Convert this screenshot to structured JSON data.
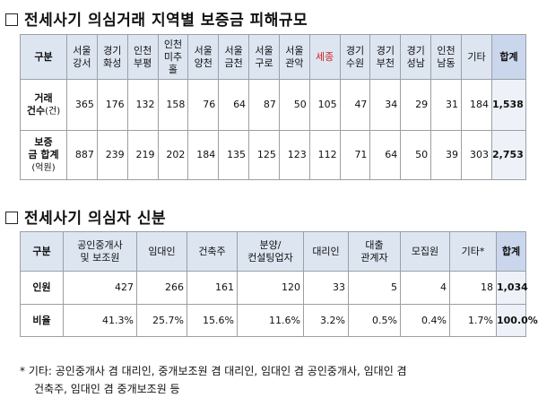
{
  "section1": {
    "title": "전세사기 의심거래 지역별 보증금 피해규모",
    "header_label": "구분",
    "columns": [
      "서울\n강서",
      "경기\n화성",
      "인천\n부평",
      "인천\n미추\n홀",
      "서울\n양천",
      "서울\n금천",
      "서울\n구로",
      "서울\n관악",
      "세종",
      "경기\n수원",
      "경기\n부천",
      "경기\n성남",
      "인천\n남동",
      "기타"
    ],
    "total_label": "합계",
    "rows": [
      {
        "label_main": "거래",
        "label_sub": "건수",
        "label_unit": "(건)",
        "values": [
          "365",
          "176",
          "132",
          "158",
          "76",
          "64",
          "87",
          "50",
          "105",
          "47",
          "34",
          "29",
          "31",
          "184"
        ],
        "total": "1,538"
      },
      {
        "label_main": "보증",
        "label_sub": "금 합계",
        "label_unit": "(억원)",
        "values": [
          "887",
          "239",
          "219",
          "202",
          "184",
          "135",
          "125",
          "123",
          "112",
          "71",
          "64",
          "50",
          "39",
          "303"
        ],
        "total": "2,753"
      }
    ]
  },
  "section2": {
    "title": "전세사기 의심자 신분",
    "header_label": "구분",
    "columns": [
      "공인중개사\n및 보조원",
      "임대인",
      "건축주",
      "분양/\n컨설팅업자",
      "대리인",
      "대출\n관계자",
      "모집원",
      "기타*"
    ],
    "total_label": "합계",
    "rows": [
      {
        "label": "인원",
        "values": [
          "427",
          "266",
          "161",
          "120",
          "33",
          "5",
          "4",
          "18"
        ],
        "total": "1,034"
      },
      {
        "label": "비율",
        "values": [
          "41.3%",
          "25.7%",
          "15.6%",
          "11.6%",
          "3.2%",
          "0.5%",
          "0.4%",
          "1.7%"
        ],
        "total": "100.0%"
      }
    ]
  },
  "note": {
    "line1": "* 기타: 공인중개사 겸 대리인, 중개보조원 겸 대리인, 임대인 겸 공인중개사, 임대인 겸",
    "line2": "건축주, 임대인 겸 중개보조원 등"
  },
  "colors": {
    "header_bg": "#dde5f1",
    "total_header_bg": "#c9d6ec",
    "highlight_red": "#d21f1f"
  }
}
